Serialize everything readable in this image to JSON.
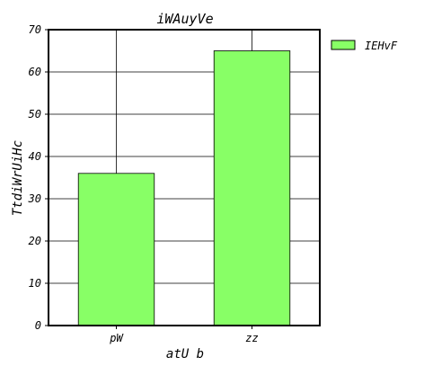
{
  "chart_data": {
    "type": "bar",
    "title": "iWAuyVe",
    "xlabel": "atU b",
    "ylabel": "TtdiWrUiHc",
    "categories": [
      "pW",
      "zz"
    ],
    "series": [
      {
        "name": "IEHvF",
        "values": [
          36,
          65
        ]
      }
    ],
    "ylim": [
      0,
      70
    ],
    "yticks": [
      0,
      10,
      20,
      30,
      40,
      50,
      60,
      70
    ],
    "grid": true,
    "legend_position": "outside-top-right",
    "colors": {
      "bar": "#88ff66",
      "bar_edge": "#000000",
      "axes": "#000000",
      "grid": "#000000"
    }
  }
}
